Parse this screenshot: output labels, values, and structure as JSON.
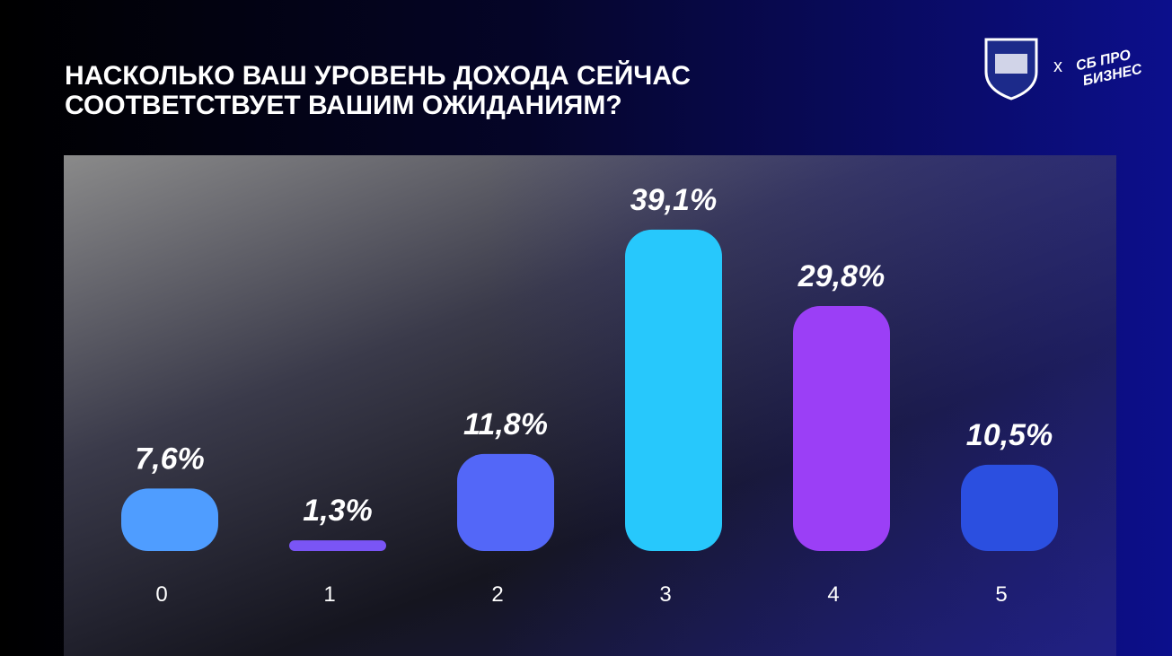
{
  "chart_data": {
    "type": "bar",
    "title": "НАСКОЛЬКО ВАШ УРОВЕНЬ ДОХОДА СЕЙЧАС СООТВЕТСТВУЕТ ВАШИМ ОЖИДАНИЯМ?",
    "categories": [
      "0",
      "1",
      "2",
      "3",
      "4",
      "5"
    ],
    "values": [
      7.6,
      1.3,
      11.8,
      39.1,
      29.8,
      10.5
    ],
    "value_labels": [
      "7,6%",
      "1,3%",
      "11,8%",
      "39,1%",
      "29,8%",
      "10,5%"
    ],
    "colors": [
      "#4f9dff",
      "#7a55f5",
      "#5367f8",
      "#27c8fc",
      "#9b3ff6",
      "#2b4fe0"
    ]
  },
  "branding": {
    "separator": "x",
    "logo_text": [
      "СБ ПРО",
      "БИЗНЕС"
    ]
  }
}
